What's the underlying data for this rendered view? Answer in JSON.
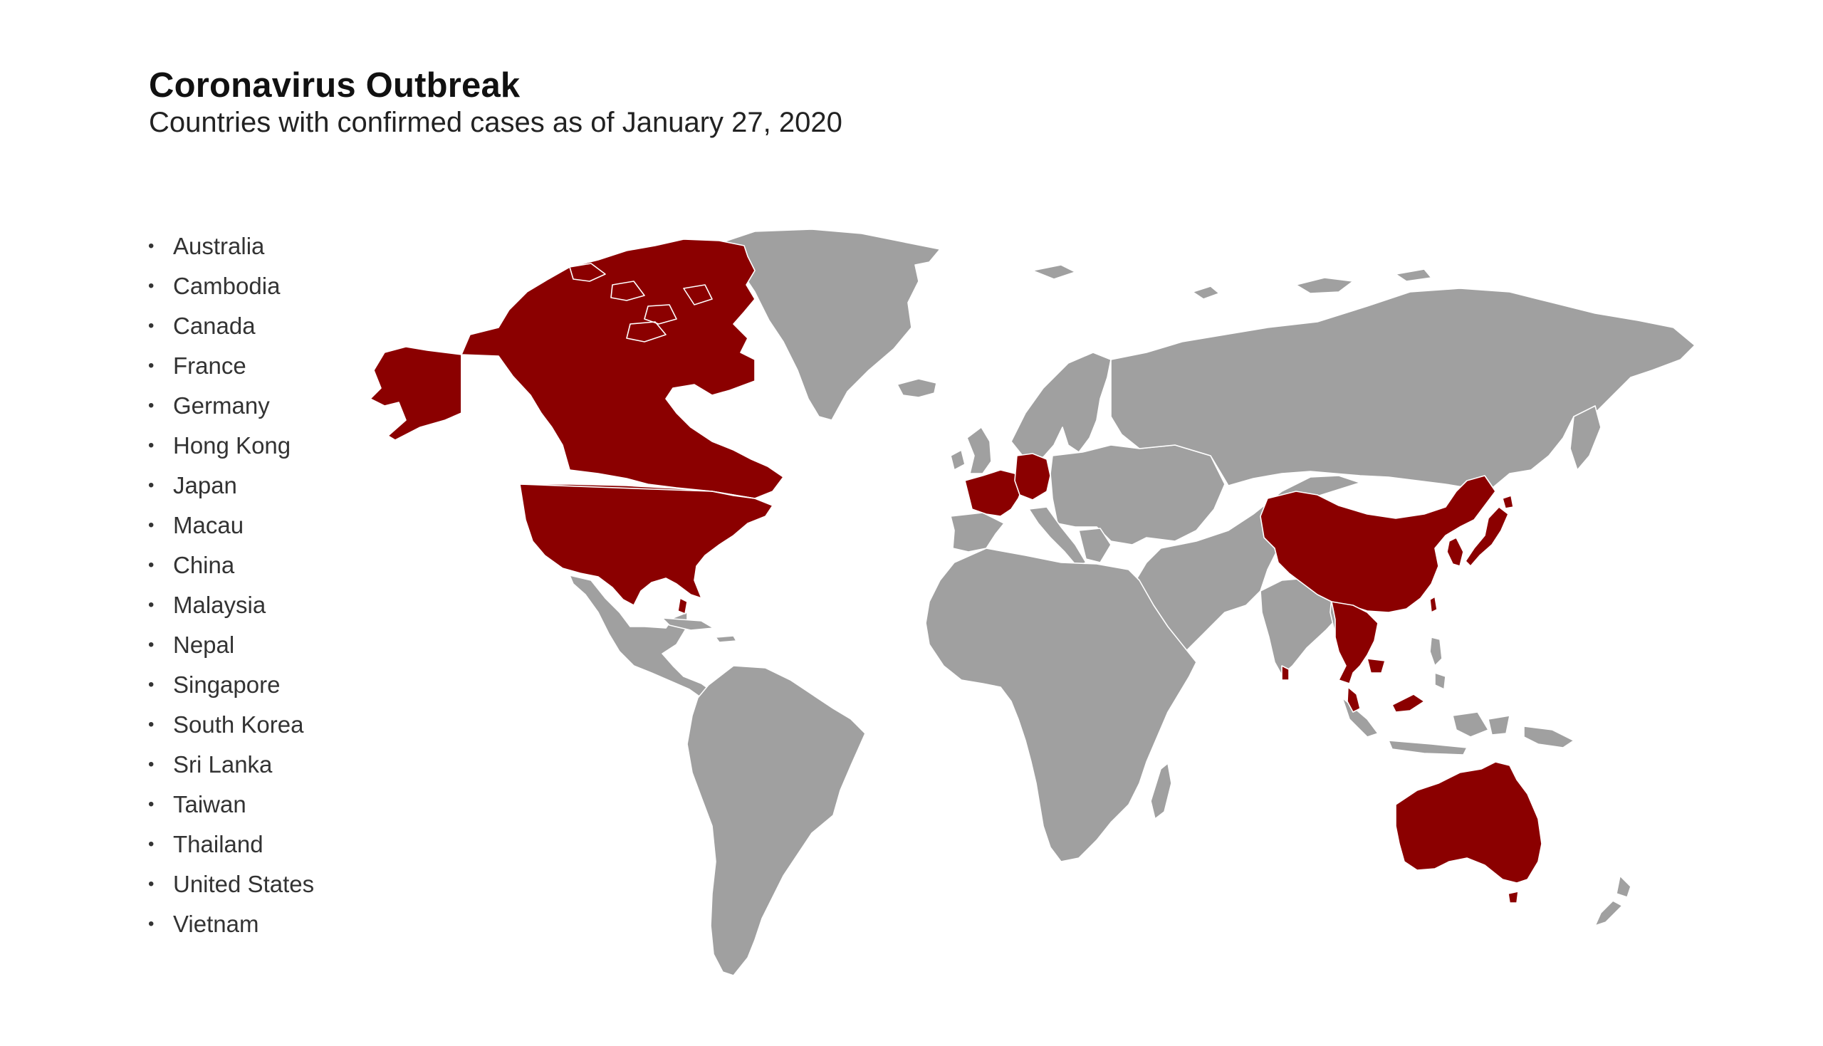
{
  "header": {
    "title": "Coronavirus Outbreak",
    "subtitle": "Countries with confirmed cases as of January 27, 2020"
  },
  "legend": {
    "bullet": "•",
    "countries": [
      "Australia",
      "Cambodia",
      "Canada",
      "France",
      "Germany",
      "Hong Kong",
      "Japan",
      "Macau",
      "China",
      "Malaysia",
      "Nepal",
      "Singapore",
      "South Korea",
      "Sri Lanka",
      "Taiwan",
      "Thailand",
      "United States",
      "Vietnam"
    ]
  },
  "colors": {
    "affected": "#8b0000",
    "unaffected": "#a0a0a0",
    "border": "#ffffff",
    "background": "#ffffff"
  }
}
